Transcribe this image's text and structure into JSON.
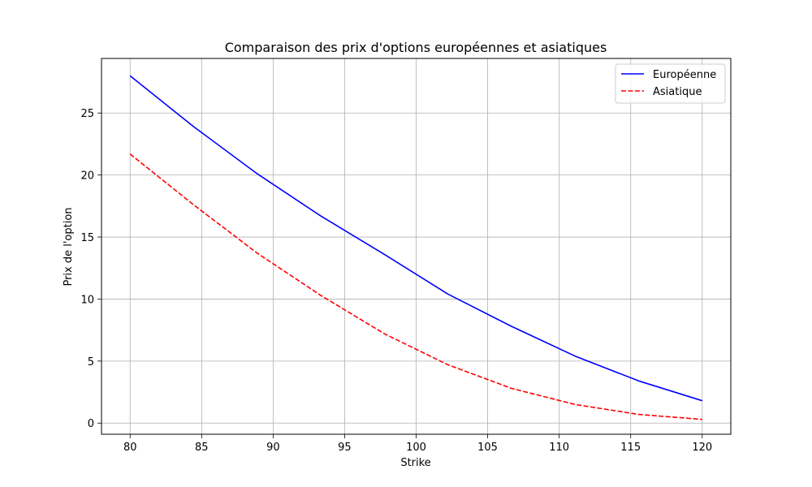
{
  "chart_data": {
    "type": "line",
    "title": "Comparaison des prix d'options européennes et asiatiques",
    "xlabel": "Strike",
    "ylabel": "Prix de l'option",
    "xlim": [
      78,
      122
    ],
    "ylim": [
      -0.9,
      29.4
    ],
    "xticks": [
      "80",
      "85",
      "90",
      "95",
      "100",
      "105",
      "110",
      "115",
      "120"
    ],
    "yticks": [
      "0",
      "5",
      "10",
      "15",
      "20",
      "25"
    ],
    "grid": true,
    "legend_position": "top-right",
    "x": [
      80,
      84.44,
      88.89,
      93.33,
      97.78,
      102.22,
      106.67,
      111.11,
      115.56,
      120
    ],
    "series": [
      {
        "name": "Européenne",
        "style": "solid",
        "color": "#0000ff",
        "values": [
          28.0,
          23.9,
          20.1,
          16.7,
          13.6,
          10.4,
          7.8,
          5.4,
          3.4,
          1.8
        ]
      },
      {
        "name": "Asiatique",
        "style": "dashed",
        "color": "#ff0000",
        "values": [
          21.7,
          17.6,
          13.7,
          10.3,
          7.2,
          4.7,
          2.8,
          1.5,
          0.7,
          0.3
        ]
      }
    ]
  }
}
